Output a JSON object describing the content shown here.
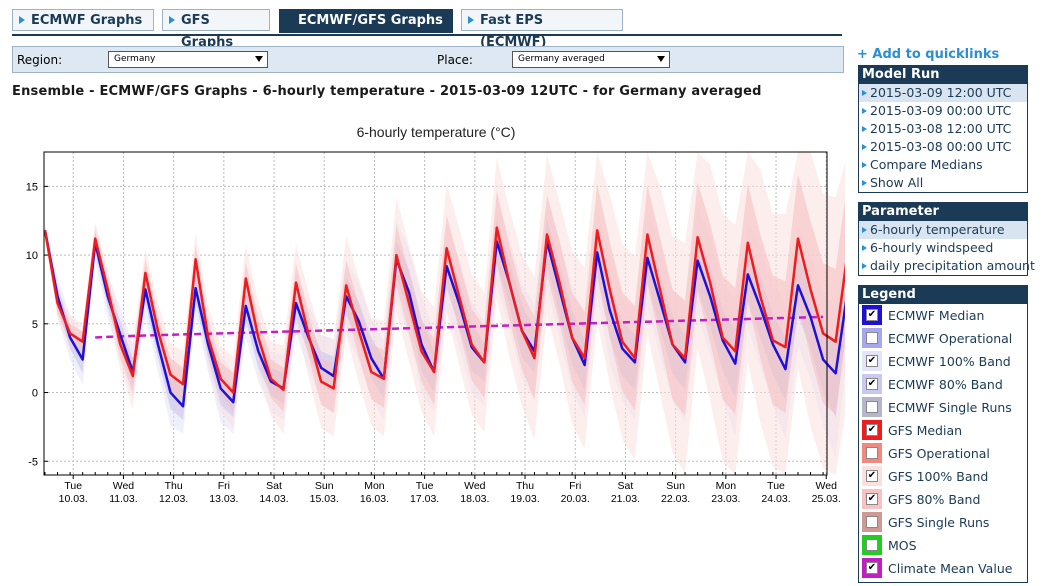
{
  "tabs": [
    {
      "label": "ECMWF Graphs",
      "active": false
    },
    {
      "label": "GFS Graphs",
      "active": false
    },
    {
      "label": "ECMWF/GFS Graphs",
      "active": true
    },
    {
      "label": "Fast EPS (ECMWF)",
      "active": false
    }
  ],
  "filters": {
    "region_label": "Region:",
    "region_value": "Germany",
    "place_label": "Place:",
    "place_value": "Germany averaged"
  },
  "heading": "Ensemble - ECMWF/GFS Graphs - 6-hourly temperature - 2015-03-09 12UTC - for Germany averaged",
  "sidebar": {
    "quicklinks": "+ Add to quicklinks",
    "model_run": {
      "title": "Model Run",
      "items": [
        {
          "label": "2015-03-09 12:00 UTC",
          "selected": true
        },
        {
          "label": "2015-03-09 00:00 UTC",
          "selected": false
        },
        {
          "label": "2015-03-08 12:00 UTC",
          "selected": false
        },
        {
          "label": "2015-03-08 00:00 UTC",
          "selected": false
        },
        {
          "label": "Compare Medians",
          "selected": false
        },
        {
          "label": "Show All",
          "selected": false
        }
      ]
    },
    "parameter": {
      "title": "Parameter",
      "items": [
        {
          "label": "6-hourly temperature",
          "selected": true
        },
        {
          "label": "6-hourly windspeed",
          "selected": false
        },
        {
          "label": "daily precipitation amount",
          "selected": false
        }
      ]
    },
    "legend": {
      "title": "Legend",
      "items": [
        {
          "label": "ECMWF Median",
          "color": "#1f10d8",
          "checked": true
        },
        {
          "label": "ECMWF Operational",
          "color": "#a7a7ee",
          "checked": false
        },
        {
          "label": "ECMWF 100% Band",
          "color": "#e4e4f8",
          "checked": true
        },
        {
          "label": "ECMWF 80% Band",
          "color": "#c8c8f0",
          "checked": true
        },
        {
          "label": "ECMWF Single Runs",
          "color": "#b4b6cc",
          "checked": false
        },
        {
          "label": "GFS Median",
          "color": "#ee1c1c",
          "checked": true
        },
        {
          "label": "GFS Operational",
          "color": "#f08a80",
          "checked": false
        },
        {
          "label": "GFS 100% Band",
          "color": "#fbe0e0",
          "checked": true
        },
        {
          "label": "GFS 80% Band",
          "color": "#f6c2c2",
          "checked": true
        },
        {
          "label": "GFS Single Runs",
          "color": "#d09a92",
          "checked": false
        },
        {
          "label": "MOS",
          "color": "#22cc22",
          "checked": false
        },
        {
          "label": "Climate Mean Value",
          "color": "#c21fc2",
          "checked": true
        }
      ]
    }
  },
  "chart_data": {
    "type": "line",
    "title": "6-hourly temperature (°C)",
    "xlabel": "",
    "ylabel": "",
    "ylim": [
      -6,
      17.5
    ],
    "yticks": [
      -5,
      0,
      5,
      10,
      15
    ],
    "grid": true,
    "time_step_hours": 6,
    "x_ticks": [
      {
        "day": "Tue",
        "date": "10.03."
      },
      {
        "day": "Wed",
        "date": "11.03."
      },
      {
        "day": "Thu",
        "date": "12.03."
      },
      {
        "day": "Fri",
        "date": "13.03."
      },
      {
        "day": "Sat",
        "date": "14.03."
      },
      {
        "day": "Sun",
        "date": "15.03."
      },
      {
        "day": "Mon",
        "date": "16.03."
      },
      {
        "day": "Tue",
        "date": "17.03."
      },
      {
        "day": "Wed",
        "date": "18.03."
      },
      {
        "day": "Thu",
        "date": "19.03."
      },
      {
        "day": "Fri",
        "date": "20.03."
      },
      {
        "day": "Sat",
        "date": "21.03."
      },
      {
        "day": "Sun",
        "date": "22.03."
      },
      {
        "day": "Mon",
        "date": "23.03."
      },
      {
        "day": "Tue",
        "date": "24.03."
      },
      {
        "day": "Wed",
        "date": "25.03."
      }
    ],
    "series": [
      {
        "name": "ECMWF Median",
        "color": "#1f10d8",
        "values": [
          11.8,
          7.0,
          4.0,
          2.4,
          10.9,
          7.0,
          4.2,
          1.5,
          7.5,
          3.5,
          0.0,
          -1.0,
          7.6,
          3.5,
          0.3,
          -0.7,
          6.3,
          3.0,
          0.8,
          0.3,
          6.5,
          4.0,
          1.8,
          1.2,
          7.0,
          5.2,
          2.5,
          1.0,
          9.7,
          7.3,
          3.5,
          1.5,
          9.2,
          6.5,
          3.3,
          2.2,
          11.0,
          8.0,
          4.5,
          3.0,
          11.0,
          7.5,
          4.0,
          2.0,
          10.2,
          6.0,
          3.2,
          2.2,
          9.8,
          6.7,
          3.5,
          2.2,
          9.6,
          7.0,
          3.8,
          2.1,
          8.6,
          6.2,
          3.5,
          1.7,
          7.8,
          5.5,
          2.4,
          1.4,
          7.7
        ]
      },
      {
        "name": "GFS Median",
        "color": "#ee1c1c",
        "values": [
          11.8,
          6.5,
          4.3,
          3.7,
          11.2,
          7.5,
          3.5,
          1.2,
          8.7,
          4.5,
          1.3,
          0.6,
          9.7,
          4.0,
          1.0,
          0.0,
          8.3,
          4.0,
          1.0,
          0.2,
          8.0,
          4.2,
          0.8,
          0.3,
          7.8,
          4.5,
          1.5,
          1.0,
          10.0,
          6.5,
          3.0,
          1.5,
          10.5,
          7.0,
          3.5,
          2.2,
          12.0,
          8.0,
          4.5,
          2.5,
          11.5,
          8.0,
          4.0,
          2.5,
          11.8,
          7.5,
          3.7,
          2.5,
          11.5,
          7.5,
          3.5,
          2.5,
          11.3,
          8.0,
          4.0,
          3.0,
          10.9,
          7.0,
          3.8,
          3.3,
          11.2,
          7.5,
          4.3,
          3.7,
          10.5
        ]
      },
      {
        "name": "ECMWF 80% Band",
        "color": "#c8c8f0",
        "upper": [
          12.0,
          7.8,
          4.8,
          3.4,
          11.6,
          7.8,
          5.2,
          2.5,
          8.5,
          4.5,
          1.2,
          0.2,
          8.6,
          4.5,
          1.5,
          0.4,
          7.4,
          4.2,
          1.8,
          1.4,
          7.6,
          5.2,
          3.0,
          2.6,
          8.4,
          6.6,
          4.0,
          2.4,
          11.0,
          9.0,
          5.4,
          3.0,
          10.8,
          8.2,
          5.0,
          3.6,
          12.6,
          9.6,
          6.4,
          4.6,
          12.6,
          9.4,
          6.0,
          3.8,
          11.8,
          8.0,
          5.2,
          4.2,
          11.6,
          8.7,
          5.6,
          4.2,
          11.6,
          9.2,
          6.0,
          4.6,
          10.6,
          8.4,
          5.7,
          4.0,
          10.0,
          7.8,
          4.8,
          3.6,
          9.5
        ],
        "lower": [
          11.6,
          6.2,
          3.2,
          1.4,
          10.2,
          6.2,
          3.2,
          0.5,
          6.5,
          2.5,
          -1.2,
          -2.0,
          6.6,
          2.5,
          -0.9,
          -1.8,
          5.2,
          1.8,
          -0.2,
          -0.8,
          5.4,
          2.8,
          0.6,
          0.0,
          5.6,
          3.8,
          1.0,
          -0.4,
          8.4,
          5.6,
          1.6,
          0.0,
          7.6,
          4.8,
          1.6,
          0.8,
          9.4,
          6.4,
          2.6,
          1.4,
          9.4,
          5.6,
          2.0,
          0.2,
          8.6,
          4.0,
          1.2,
          0.2,
          8.0,
          4.7,
          1.4,
          0.2,
          7.6,
          4.8,
          1.6,
          -0.4,
          6.6,
          4.0,
          1.3,
          -0.6,
          5.6,
          3.2,
          0.0,
          -1.8,
          5.9
        ]
      },
      {
        "name": "ECMWF 100% Band",
        "color": "#e4e4f8",
        "upper": [
          12.2,
          8.4,
          5.6,
          4.2,
          12.2,
          8.6,
          6.2,
          3.5,
          9.5,
          5.5,
          2.4,
          1.5,
          9.6,
          5.5,
          2.7,
          1.5,
          8.5,
          5.2,
          3.0,
          2.7,
          8.7,
          6.4,
          4.2,
          3.9,
          9.7,
          8.0,
          5.4,
          3.8,
          12.5,
          10.5,
          7.0,
          4.5,
          12.3,
          9.7,
          6.6,
          5.2,
          14.2,
          11.3,
          8.0,
          6.4,
          14.2,
          11.2,
          7.8,
          5.6,
          13.4,
          9.9,
          7.0,
          6.1,
          13.4,
          10.6,
          7.6,
          6.4,
          13.5,
          11.3,
          8.0,
          6.8,
          12.5,
          10.5,
          7.9,
          6.5,
          12.2,
          10.0,
          7.2,
          6.1,
          11.3
        ],
        "lower": [
          11.4,
          5.5,
          2.4,
          0.6,
          9.5,
          5.4,
          2.2,
          -0.5,
          5.5,
          1.5,
          -2.4,
          -3.0,
          5.5,
          1.5,
          -2.2,
          -3.0,
          4.0,
          0.8,
          -1.4,
          -2.0,
          4.3,
          1.6,
          -0.6,
          -1.5,
          4.3,
          2.3,
          -0.4,
          -2.0,
          6.9,
          4.1,
          0.0,
          -1.5,
          6.1,
          3.3,
          0.0,
          -1.0,
          7.8,
          4.7,
          1.0,
          -0.6,
          7.8,
          3.8,
          0.2,
          -1.8,
          7.0,
          2.1,
          -0.6,
          -2.0,
          6.2,
          2.7,
          -0.6,
          -2.2,
          5.7,
          2.7,
          -0.4,
          -3.2,
          4.7,
          1.9,
          -1.0,
          -3.4,
          3.4,
          1.0,
          -2.4,
          -4.8,
          3.5
        ]
      },
      {
        "name": "GFS 80% Band",
        "color": "#f6c2c2",
        "upper": [
          12.0,
          7.2,
          5.0,
          4.4,
          11.8,
          8.2,
          4.5,
          2.4,
          9.7,
          5.5,
          2.5,
          1.8,
          10.7,
          5.2,
          2.2,
          1.4,
          9.5,
          5.4,
          2.4,
          1.8,
          9.4,
          5.8,
          2.5,
          2.1,
          9.6,
          6.4,
          3.5,
          3.1,
          12.2,
          8.7,
          5.2,
          3.9,
          12.9,
          9.5,
          6.1,
          4.8,
          14.7,
          10.7,
          7.3,
          5.5,
          14.4,
          11.0,
          7.2,
          5.9,
          15.2,
          11.0,
          7.3,
          6.3,
          15.1,
          11.3,
          7.5,
          6.7,
          15.3,
          12.3,
          8.5,
          7.6,
          15.2,
          11.5,
          8.5,
          8.1,
          15.9,
          12.5,
          9.4,
          9.0,
          15.8
        ],
        "lower": [
          11.6,
          5.8,
          3.6,
          3.0,
          10.6,
          6.8,
          2.5,
          0.0,
          7.7,
          3.5,
          0.1,
          -0.6,
          8.7,
          2.8,
          -0.2,
          -1.4,
          7.1,
          2.6,
          -0.4,
          -1.4,
          6.6,
          2.6,
          -0.9,
          -1.5,
          6.0,
          2.6,
          -0.5,
          -1.1,
          7.8,
          4.3,
          0.8,
          -0.9,
          8.1,
          4.5,
          0.9,
          -0.4,
          9.3,
          5.3,
          1.7,
          -0.5,
          8.6,
          5.0,
          0.8,
          -0.9,
          8.4,
          4.0,
          0.1,
          -1.3,
          7.9,
          3.7,
          -0.5,
          -1.7,
          7.3,
          3.7,
          -0.5,
          -1.6,
          6.6,
          2.5,
          -0.9,
          -1.5,
          6.5,
          2.5,
          -0.8,
          -1.6,
          5.2
        ]
      },
      {
        "name": "GFS 100% Band",
        "color": "#fbe0e0",
        "upper": [
          12.2,
          7.6,
          5.6,
          5.0,
          12.4,
          8.9,
          5.4,
          3.5,
          10.5,
          6.5,
          3.6,
          3.0,
          11.7,
          6.3,
          3.4,
          2.6,
          10.7,
          6.6,
          3.7,
          3.4,
          10.8,
          7.3,
          4.2,
          3.8,
          11.4,
          8.3,
          5.4,
          5.2,
          14.2,
          10.7,
          7.4,
          6.2,
          15.2,
          12.0,
          8.6,
          7.3,
          17.1,
          13.4,
          10.0,
          8.4,
          17.3,
          13.9,
          10.3,
          9.1,
          18.3,
          14.4,
          10.8,
          9.9,
          18.7,
          15.0,
          11.4,
          10.9,
          19.4,
          16.6,
          13.0,
          12.2,
          19.5,
          16.2,
          13.0,
          13.0,
          20.6,
          17.5,
          14.5,
          14.2,
          21.1
        ],
        "lower": [
          11.4,
          5.4,
          3.0,
          2.4,
          10.0,
          6.1,
          1.6,
          -1.2,
          6.9,
          2.5,
          -1.0,
          -1.8,
          7.7,
          1.7,
          -1.4,
          -2.6,
          5.9,
          1.4,
          -1.7,
          -3.0,
          5.2,
          1.1,
          -2.6,
          -3.2,
          4.2,
          0.7,
          -2.4,
          -3.2,
          5.8,
          2.3,
          -1.4,
          -3.2,
          5.8,
          2.0,
          -1.6,
          -2.9,
          6.9,
          2.6,
          -1.0,
          -3.4,
          5.7,
          2.1,
          -2.3,
          -4.1,
          5.3,
          0.6,
          -3.4,
          -4.9,
          4.3,
          0.0,
          -4.4,
          -5.9,
          3.2,
          -0.6,
          -5.0,
          -6.2,
          2.3,
          -2.2,
          -5.4,
          -6.4,
          1.8,
          -2.5,
          -5.5,
          -6.8,
          -0.1
        ]
      },
      {
        "name": "Climate Mean Value",
        "color": "#c21fc2",
        "values": [
          null,
          null,
          null,
          null,
          4.0,
          4.05,
          4.08,
          4.12,
          4.15,
          4.18,
          4.2,
          4.23,
          4.25,
          4.28,
          4.3,
          4.33,
          4.35,
          4.38,
          4.4,
          4.43,
          4.45,
          4.48,
          4.5,
          4.53,
          4.55,
          4.58,
          4.6,
          4.63,
          4.65,
          4.68,
          4.7,
          4.73,
          4.75,
          4.78,
          4.8,
          4.83,
          4.85,
          4.88,
          4.9,
          4.93,
          4.95,
          4.98,
          5.0,
          5.03,
          5.05,
          5.08,
          5.1,
          5.13,
          5.15,
          5.18,
          5.2,
          5.23,
          5.25,
          5.28,
          5.3,
          5.33,
          5.35,
          5.38,
          5.4,
          5.43,
          5.45,
          5.48,
          5.5,
          null,
          null
        ]
      }
    ]
  }
}
